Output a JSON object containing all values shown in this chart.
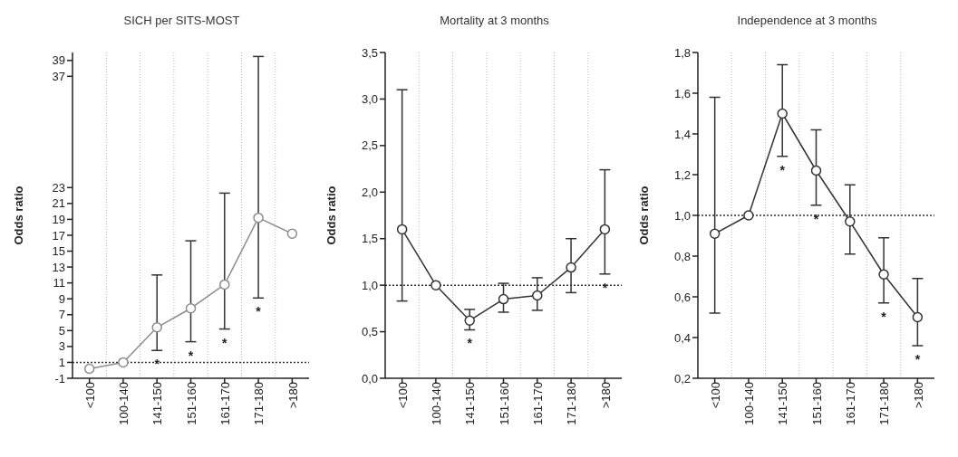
{
  "chart_data": [
    {
      "type": "line",
      "title": "SICH per SITS-MOST",
      "ylabel": "Odds ratio",
      "categories": [
        "<100",
        "100-140",
        "141-150",
        "151-160",
        "161-170",
        "171-180",
        ">180"
      ],
      "series": [
        {
          "color": "#8c8c8c",
          "values": [
            0.2,
            1.0,
            5.4,
            7.8,
            10.8,
            19.2,
            17.2
          ],
          "errors": [
            null,
            null,
            [
              2.5,
              12
            ],
            [
              3.6,
              16.3
            ],
            [
              5.2,
              22.3
            ],
            [
              9.1,
              39.5
            ],
            null
          ]
        }
      ],
      "ylim": [
        -1,
        40
      ],
      "yticks": [
        -1,
        1,
        3,
        5,
        7,
        9,
        11,
        13,
        15,
        17,
        19,
        21,
        23,
        37,
        39
      ],
      "ref_lines": [
        {
          "axis": "y",
          "value": 1,
          "line_style": "dotted"
        }
      ],
      "grid": "x",
      "marker": "circle",
      "annotations": [
        {
          "text": "*",
          "x": "141-150",
          "y": 2.5
        },
        {
          "text": "*",
          "x": "151-160",
          "y": 3.6
        },
        {
          "text": "*",
          "x": "161-170",
          "y": 5.2
        },
        {
          "text": "*",
          "x": "171-180",
          "y": 9.1
        }
      ]
    },
    {
      "type": "line",
      "title": "Mortality at 3 months",
      "ylabel": "Odds ratio",
      "categories": [
        "<100",
        "100-140",
        "141-150",
        "151-160",
        "161-170",
        "171-180",
        ">180"
      ],
      "series": [
        {
          "color": "#333333",
          "values": [
            1.6,
            1.0,
            0.62,
            0.85,
            0.89,
            1.19,
            1.6
          ],
          "errors": [
            [
              0.83,
              3.1
            ],
            null,
            [
              0.52,
              0.74
            ],
            [
              0.71,
              1.02
            ],
            [
              0.73,
              1.08
            ],
            [
              0.92,
              1.5
            ],
            [
              1.12,
              2.24
            ]
          ]
        }
      ],
      "ylim": [
        0,
        3.5
      ],
      "yticks": [
        {
          "value": 0,
          "label": "0,0"
        },
        {
          "value": 0.5,
          "label": "0,5"
        },
        {
          "value": 1,
          "label": "1,0"
        },
        {
          "value": 1.5,
          "label": "1,5"
        },
        {
          "value": 2,
          "label": "2,0"
        },
        {
          "value": 2.5,
          "label": "2,5"
        },
        {
          "value": 3,
          "label": "3,0"
        },
        {
          "value": 3.5,
          "label": "3,5"
        }
      ],
      "ref_lines": [
        {
          "axis": "y",
          "value": 1,
          "line_style": "dotted"
        }
      ],
      "grid": "x",
      "marker": "circle",
      "annotations": [
        {
          "text": "*",
          "x": "141-150",
          "y": 0.52
        },
        {
          "text": "*",
          "x": ">180",
          "y": 1.12
        }
      ]
    },
    {
      "type": "line",
      "title": "Independence at 3 months",
      "ylabel": "Odds ratio",
      "categories": [
        "<100",
        "100-140",
        "141-150",
        "151-160",
        "161-170",
        "171-180",
        ">180"
      ],
      "series": [
        {
          "color": "#333333",
          "values": [
            0.91,
            1.0,
            1.5,
            1.22,
            0.97,
            0.71,
            0.5
          ],
          "errors": [
            [
              0.52,
              1.58
            ],
            null,
            [
              1.29,
              1.74
            ],
            [
              1.05,
              1.42
            ],
            [
              0.81,
              1.15
            ],
            [
              0.57,
              0.89
            ],
            [
              0.36,
              0.69
            ]
          ]
        }
      ],
      "ylim": [
        0.2,
        1.8
      ],
      "yticks": [
        {
          "value": 0.2,
          "label": "0,2"
        },
        {
          "value": 0.4,
          "label": "0,4"
        },
        {
          "value": 0.6,
          "label": "0,6"
        },
        {
          "value": 0.8,
          "label": "0,8"
        },
        {
          "value": 1,
          "label": "1,0"
        },
        {
          "value": 1.2,
          "label": "1,2"
        },
        {
          "value": 1.4,
          "label": "1,4"
        },
        {
          "value": 1.6,
          "label": "1,6"
        },
        {
          "value": 1.8,
          "label": "1,8"
        }
      ],
      "ref_lines": [
        {
          "axis": "y",
          "value": 1,
          "line_style": "dotted"
        }
      ],
      "grid": "x",
      "marker": "circle",
      "annotations": [
        {
          "text": "*",
          "x": "141-150",
          "y": 1.29
        },
        {
          "text": "*",
          "x": "151-160",
          "y": 1.05
        },
        {
          "text": "*",
          "x": "171-180",
          "y": 0.57
        },
        {
          "text": "*",
          "x": ">180",
          "y": 0.36
        }
      ]
    }
  ]
}
